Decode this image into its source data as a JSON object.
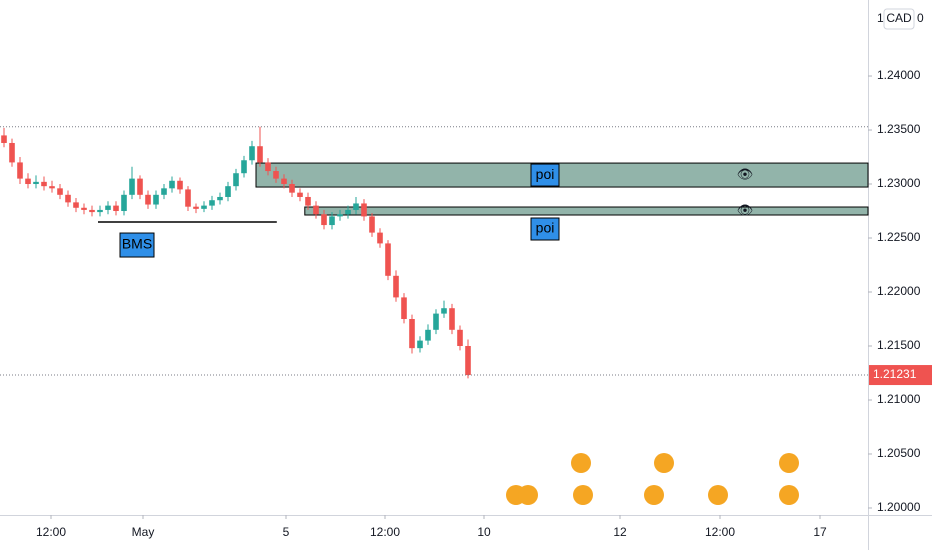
{
  "chart_data": {
    "type": "candlestick",
    "currency": "CAD",
    "currency_prefix": "1",
    "currency_suffix": "0",
    "up_color": "#26a69a",
    "down_color": "#ef5350",
    "x": [
      0,
      1,
      2,
      3,
      4,
      5,
      6,
      7,
      8,
      9,
      10,
      11,
      12,
      13,
      14,
      15,
      16,
      17,
      18,
      19,
      20,
      21,
      22,
      23,
      24,
      25,
      26,
      27,
      28,
      29,
      30,
      31,
      32,
      33,
      34,
      35,
      36,
      37,
      38,
      39,
      40,
      41,
      42,
      43,
      44,
      45,
      46,
      47,
      48,
      49,
      50,
      51,
      52,
      53,
      54,
      55,
      56,
      57,
      58
    ],
    "open": [
      1.2345,
      1.2338,
      1.232,
      1.2305,
      1.23,
      1.2302,
      1.2298,
      1.2296,
      1.229,
      1.2283,
      1.2278,
      1.2276,
      1.2274,
      1.2276,
      1.228,
      1.2275,
      1.229,
      1.2305,
      1.229,
      1.2281,
      1.229,
      1.2296,
      1.2303,
      1.2295,
      1.2279,
      1.2277,
      1.228,
      1.2285,
      1.2288,
      1.2298,
      1.231,
      1.2322,
      1.2335,
      1.232,
      1.2312,
      1.2305,
      1.23,
      1.2292,
      1.2288,
      1.228,
      1.2272,
      1.2262,
      1.227,
      1.2272,
      1.2276,
      1.2282,
      1.227,
      1.2255,
      1.2245,
      1.2215,
      1.2195,
      1.2175,
      1.2148,
      1.2155,
      1.2165,
      1.218,
      1.2185,
      1.2165,
      1.215
    ],
    "close": [
      1.2338,
      1.232,
      1.2305,
      1.23,
      1.2302,
      1.2298,
      1.2296,
      1.229,
      1.2283,
      1.2278,
      1.2276,
      1.2274,
      1.2276,
      1.228,
      1.2275,
      1.229,
      1.2305,
      1.229,
      1.2281,
      1.229,
      1.2296,
      1.2303,
      1.2295,
      1.2279,
      1.2277,
      1.228,
      1.2285,
      1.2288,
      1.2298,
      1.231,
      1.2322,
      1.2335,
      1.232,
      1.2312,
      1.2305,
      1.23,
      1.2292,
      1.2288,
      1.228,
      1.2272,
      1.2262,
      1.227,
      1.2272,
      1.2276,
      1.2282,
      1.227,
      1.2255,
      1.2245,
      1.2215,
      1.2195,
      1.2175,
      1.2148,
      1.2155,
      1.2165,
      1.218,
      1.2185,
      1.2165,
      1.215,
      1.21231
    ],
    "high": [
      1.2352,
      1.2342,
      1.2325,
      1.231,
      1.2308,
      1.2307,
      1.2303,
      1.23,
      1.2294,
      1.2287,
      1.2282,
      1.228,
      1.228,
      1.2284,
      1.2284,
      1.2294,
      1.2316,
      1.2308,
      1.2294,
      1.2294,
      1.23,
      1.2307,
      1.2306,
      1.2298,
      1.2282,
      1.2284,
      1.2289,
      1.2292,
      1.2302,
      1.2314,
      1.2326,
      1.234,
      1.2353,
      1.2324,
      1.2316,
      1.2309,
      1.2304,
      1.2296,
      1.2292,
      1.2284,
      1.2276,
      1.2274,
      1.2276,
      1.228,
      1.2288,
      1.2286,
      1.2273,
      1.2259,
      1.2248,
      1.222,
      1.2199,
      1.2179,
      1.2159,
      1.217,
      1.2184,
      1.2192,
      1.2189,
      1.2169,
      1.2156
    ],
    "low": [
      1.2334,
      1.2316,
      1.23,
      1.2296,
      1.2296,
      1.2294,
      1.2292,
      1.2286,
      1.2279,
      1.2274,
      1.2272,
      1.227,
      1.227,
      1.2272,
      1.2271,
      1.2271,
      1.2286,
      1.2286,
      1.2277,
      1.2277,
      1.2286,
      1.2292,
      1.2291,
      1.2275,
      1.2273,
      1.2274,
      1.2276,
      1.2281,
      1.2284,
      1.2294,
      1.2306,
      1.2318,
      1.2316,
      1.2308,
      1.2301,
      1.2296,
      1.2288,
      1.2284,
      1.2276,
      1.2268,
      1.2258,
      1.2258,
      1.2266,
      1.2268,
      1.2272,
      1.2266,
      1.2251,
      1.2241,
      1.2211,
      1.2191,
      1.2171,
      1.2143,
      1.2144,
      1.2151,
      1.2161,
      1.2176,
      1.2161,
      1.2146,
      1.212
    ],
    "xlim": [
      -0.5,
      108
    ],
    "xticks": [
      {
        "value": 5.875,
        "label": "12:00"
      },
      {
        "value": 17.375,
        "label": "May"
      },
      {
        "value": 35.25,
        "label": "5"
      },
      {
        "value": 47.625,
        "label": "12:00"
      },
      {
        "value": 60,
        "label": "10"
      },
      {
        "value": 77,
        "label": "12"
      },
      {
        "value": 89.5,
        "label": "12:00"
      },
      {
        "value": 102,
        "label": "17"
      }
    ],
    "ylim": [
      1.19935,
      1.24704
    ],
    "yticks": [
      {
        "value": 1.2,
        "label": "1.20000"
      },
      {
        "value": 1.205,
        "label": "1.20500"
      },
      {
        "value": 1.21,
        "label": "1.21000"
      },
      {
        "value": 1.215,
        "label": "1.21500"
      },
      {
        "value": 1.22,
        "label": "1.22000"
      },
      {
        "value": 1.225,
        "label": "1.22500"
      },
      {
        "value": 1.23,
        "label": "1.23000"
      },
      {
        "value": 1.235,
        "label": "1.23500"
      },
      {
        "value": 1.24,
        "label": "1.24000"
      }
    ],
    "last_price": 1.21231,
    "high_level": 1.2353,
    "zones": [
      {
        "label": "poi",
        "x_start": 31.5,
        "top": 1.23194,
        "bottom": 1.22972
      },
      {
        "label": "poi",
        "x_start": 37.6,
        "top": 1.22787,
        "bottom": 1.22713
      }
    ],
    "bms": {
      "label": "BMS",
      "price": 1.22648,
      "x_start": 11.75,
      "x_end": 34.1
    }
  }
}
